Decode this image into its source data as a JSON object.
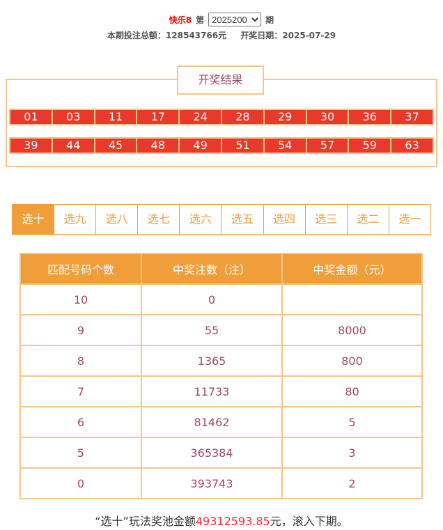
{
  "header": {
    "brand": "快乐8",
    "prefix": "第",
    "issue": "2025200",
    "suffix": "期",
    "total_label": "本期投注总额：",
    "total_value": "128543766元",
    "date_label": "开奖日期：",
    "date_value": "2025-07-29"
  },
  "result": {
    "title": "开奖结果",
    "row1": [
      "01",
      "03",
      "11",
      "17",
      "24",
      "28",
      "29",
      "30",
      "36",
      "37"
    ],
    "row2": [
      "39",
      "44",
      "45",
      "48",
      "49",
      "51",
      "54",
      "57",
      "59",
      "63"
    ]
  },
  "tabs": [
    "选十",
    "选九",
    "选八",
    "选七",
    "选六",
    "选五",
    "选四",
    "选三",
    "选二",
    "选一"
  ],
  "active_tab": "选十",
  "table": {
    "headers": [
      "匹配号码个数",
      "中奖注数（注）",
      "中奖金额（元）"
    ],
    "rows": [
      [
        "10",
        "0",
        ""
      ],
      [
        "9",
        "55",
        "8000"
      ],
      [
        "8",
        "1365",
        "800"
      ],
      [
        "7",
        "11733",
        "80"
      ],
      [
        "6",
        "81462",
        "5"
      ],
      [
        "5",
        "365384",
        "3"
      ],
      [
        "0",
        "393743",
        "2"
      ]
    ]
  },
  "footer": {
    "pre": "“选十”玩法奖池金额",
    "amount": "49312593.85",
    "post": "元，滚入下期。"
  },
  "colors": {
    "accent": "#f09e3a",
    "ball": "#e8392a",
    "border": "#f5c58a",
    "text": "#a0486a"
  }
}
